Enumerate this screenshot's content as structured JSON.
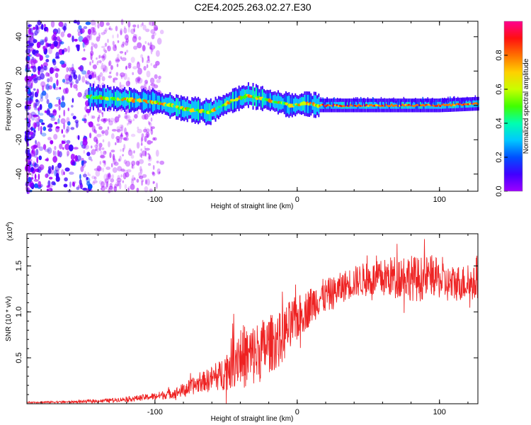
{
  "title": "C2E4.2025.263.02.27.E30",
  "colors": {
    "spectrogram_background": "#ffffff",
    "snr_line": "#ee2222",
    "axis": "#000000"
  },
  "chart_data": [
    {
      "type": "heatmap",
      "name": "spectrogram",
      "xlabel": "Height of straight line (km)",
      "ylabel": "Frequency (Hz)",
      "xlim": [
        -190,
        127
      ],
      "ylim": [
        -50,
        49
      ],
      "xticks": [
        -100,
        0,
        100
      ],
      "xtick_labels": [
        "-100",
        "0",
        "100"
      ],
      "yticks": [
        -40,
        -20,
        0,
        20,
        40
      ],
      "ytick_labels": [
        "-40",
        "-20",
        "0",
        "20",
        "40"
      ],
      "colorbar": {
        "label": "Normalized spectral amplitude",
        "range": [
          0,
          1
        ],
        "ticks": [
          0.0,
          0.2,
          0.4,
          0.6,
          0.8
        ],
        "tick_labels": [
          "0.0",
          "0.2",
          "0.4",
          "0.6",
          "0.8"
        ],
        "colormap": [
          "#9f00ff",
          "#4000ff",
          "#0050ff",
          "#00c8ff",
          "#00ffb0",
          "#40ff00",
          "#c8ff00",
          "#ffd000",
          "#ff7000",
          "#ff1010",
          "#ff0090"
        ]
      },
      "ridge": {
        "x": [
          -145,
          -130,
          -115,
          -100,
          -90,
          -80,
          -70,
          -62,
          -55,
          -45,
          -35,
          -25,
          -15,
          -5,
          5,
          15,
          40,
          60,
          80,
          100,
          127
        ],
        "y": [
          5,
          4,
          3,
          2,
          0,
          -2,
          -3,
          -4,
          -1,
          3,
          6,
          4,
          2,
          0,
          1,
          0,
          0,
          0,
          0,
          0,
          1
        ]
      }
    },
    {
      "type": "line",
      "name": "snr",
      "xlabel": "Height of straight line (km)",
      "ylabel": "SNR (10 * v/v)",
      "multiplier_label": "(x10",
      "multiplier_exponent": "4",
      "multiplier_close": ")",
      "xlim": [
        -190,
        127
      ],
      "ylim": [
        0,
        18500
      ],
      "xticks": [
        -100,
        0,
        100
      ],
      "xtick_labels": [
        "-100",
        "0",
        "100"
      ],
      "yticks": [
        5000,
        10000,
        15000
      ],
      "ytick_labels": [
        "0.5",
        "1.0",
        "1.5"
      ],
      "envelope": {
        "x": [
          -190,
          -160,
          -140,
          -120,
          -100,
          -85,
          -75,
          -65,
          -55,
          -48,
          -42,
          -35,
          -28,
          -20,
          -12,
          -5,
          5,
          15,
          25,
          35,
          45,
          55,
          65,
          75,
          85,
          95,
          105,
          115,
          127
        ],
        "mean": [
          150,
          200,
          300,
          500,
          800,
          1200,
          1800,
          2500,
          3000,
          4000,
          5500,
          5000,
          5500,
          6500,
          7000,
          8500,
          10000,
          11500,
          12000,
          13000,
          13500,
          13500,
          13800,
          14000,
          13500,
          14000,
          13000,
          13200,
          13000
        ],
        "spread": [
          80,
          120,
          180,
          250,
          400,
          600,
          900,
          1100,
          1600,
          2500,
          3500,
          3500,
          3500,
          3200,
          3000,
          2800,
          2200,
          2000,
          1800,
          1700,
          1800,
          2000,
          2200,
          2500,
          2500,
          2200,
          2000,
          2000,
          1800
        ],
        "peak_max": 18500
      }
    }
  ]
}
